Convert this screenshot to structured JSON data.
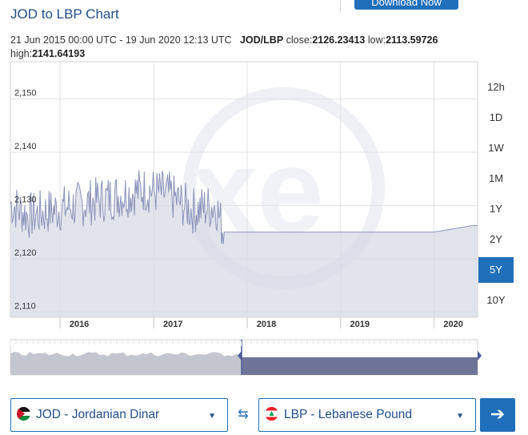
{
  "header": {
    "title": "JOD to LBP Chart",
    "download_label": "Download Now"
  },
  "meta": {
    "range_text": "21 Jun 2015 00:00 UTC - 19 Jun 2020 12:13 UTC",
    "pair": "JOD/LBP",
    "close_label": "close:",
    "close_value": "2126.23413",
    "low_label": "low:",
    "low_value": "2113.59726",
    "high_label": "high:",
    "high_value": "2141.64193"
  },
  "ranges": [
    "12h",
    "1D",
    "1W",
    "1M",
    "1Y",
    "2Y",
    "5Y",
    "10Y"
  ],
  "active_range": "5Y",
  "chart_data": {
    "type": "line",
    "series": [
      {
        "x": [
          "2015-06",
          "2015-09",
          "2015-12",
          "2016-03",
          "2016-06",
          "2016-09",
          "2016-12",
          "2017-03",
          "2017-06",
          "2017-09",
          "2017-10",
          "2018-06",
          "2019-01",
          "2019-06",
          "2020-01",
          "2020-06"
        ],
        "values": [
          2131,
          2128,
          2129,
          2130,
          2131,
          2132,
          2133,
          2132,
          2129,
          2130,
          2125,
          2125,
          2125,
          2125,
          2125,
          2126.23
        ]
      }
    ],
    "y_ticks": [
      "2,110",
      "2,120",
      "2,130",
      "2,140",
      "2,150"
    ],
    "ylim": [
      2109,
      2157
    ],
    "x_ticks": [
      "2016",
      "2017",
      "2018",
      "2019",
      "2020"
    ],
    "xlim": [
      "2015-06-21",
      "2020-06-19"
    ],
    "grid": true,
    "line_color": "#8a93b8",
    "fill_color": "#d5d9e5"
  },
  "selectors": {
    "from_label": "JOD - Jordanian Dinar",
    "to_label": "LBP - Lebanese Pound"
  },
  "icons": {
    "swap": "swap-arrows-icon",
    "go": "arrow-right-icon",
    "caret": "caret-down-icon",
    "watermark": "xe-logo-icon"
  }
}
